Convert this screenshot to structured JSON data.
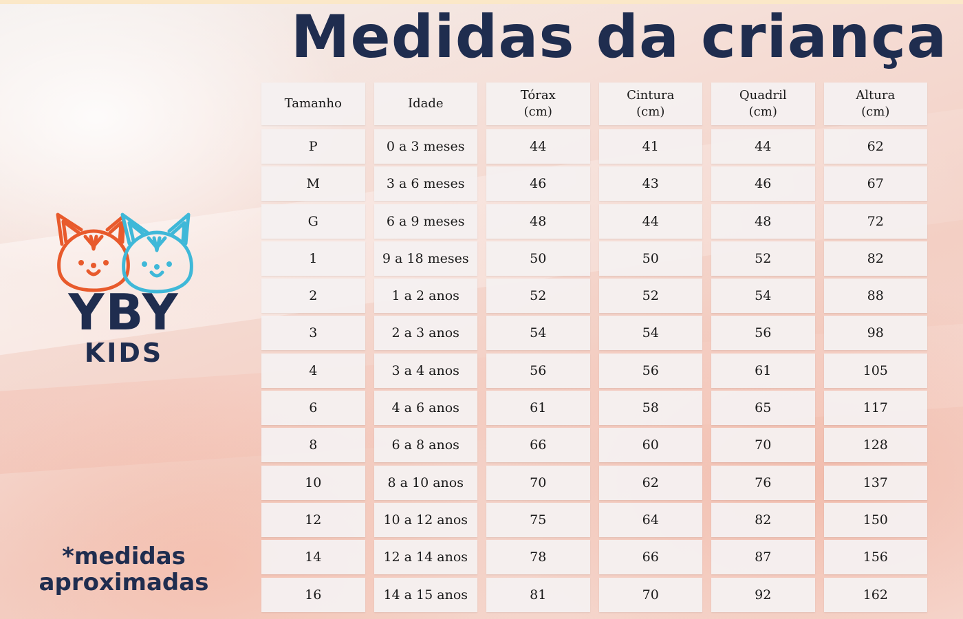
{
  "title": "Medidas da criança",
  "brand": {
    "name": "YBY",
    "sub": "KIDS",
    "logo_icon": "fox-and-bunny-faces-icon"
  },
  "note_line1": "*medidas",
  "note_line2": "aproximadas",
  "table": {
    "columns": [
      {
        "key": "tamanho",
        "line1": "Tamanho",
        "line2": ""
      },
      {
        "key": "idade",
        "line1": "Idade",
        "line2": ""
      },
      {
        "key": "torax",
        "line1": "Tórax",
        "line2": "(cm)"
      },
      {
        "key": "cintura",
        "line1": "Cintura",
        "line2": "(cm)"
      },
      {
        "key": "quadril",
        "line1": "Quadril",
        "line2": "(cm)"
      },
      {
        "key": "altura",
        "line1": "Altura",
        "line2": "(cm)"
      }
    ],
    "rows": [
      [
        "P",
        "0 a 3 meses",
        "44",
        "41",
        "44",
        "62"
      ],
      [
        "M",
        "3 a 6 meses",
        "46",
        "43",
        "46",
        "67"
      ],
      [
        "G",
        "6 a 9 meses",
        "48",
        "44",
        "48",
        "72"
      ],
      [
        "1",
        "9 a 18 meses",
        "50",
        "50",
        "52",
        "82"
      ],
      [
        "2",
        "1 a 2 anos",
        "52",
        "52",
        "54",
        "88"
      ],
      [
        "3",
        "2 a 3 anos",
        "54",
        "54",
        "56",
        "98"
      ],
      [
        "4",
        "3 a 4 anos",
        "56",
        "56",
        "61",
        "105"
      ],
      [
        "6",
        "4 a 6 anos",
        "61",
        "58",
        "65",
        "117"
      ],
      [
        "8",
        "6 a 8 anos",
        "66",
        "60",
        "70",
        "128"
      ],
      [
        "10",
        "8 a 10 anos",
        "70",
        "62",
        "76",
        "137"
      ],
      [
        "12",
        "10 a 12 anos",
        "75",
        "64",
        "82",
        "150"
      ],
      [
        "14",
        "12 a 14 anos",
        "78",
        "66",
        "87",
        "156"
      ],
      [
        "16",
        "14 a 15 anos",
        "81",
        "70",
        "92",
        "162"
      ]
    ]
  },
  "colors": {
    "navy": "#1f2d4f",
    "fox": "#e85a2c",
    "bunny": "#3fb8d8"
  }
}
